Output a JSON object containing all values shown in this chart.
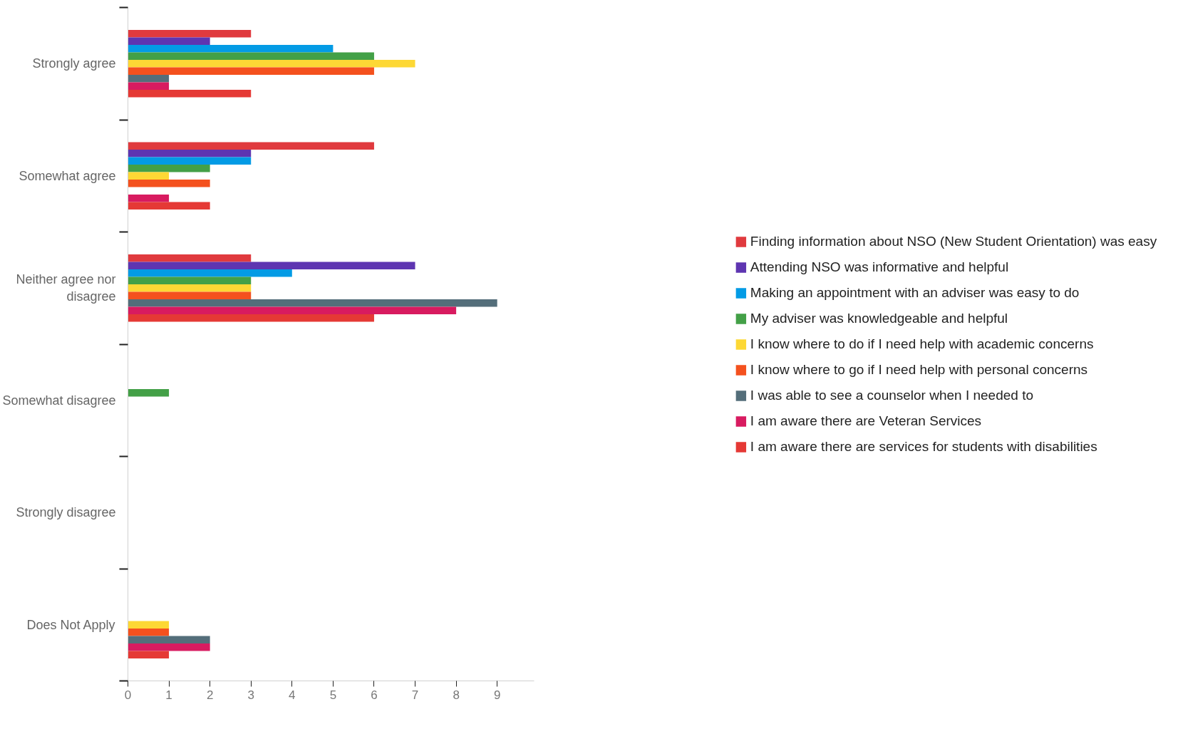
{
  "chart_data": {
    "type": "bar",
    "orientation": "horizontal",
    "categories": [
      "Strongly agree",
      "Somewhat agree",
      "Neither agree nor disagree",
      "Somewhat disagree",
      "Strongly disagree",
      "Does Not Apply"
    ],
    "xlim": [
      0,
      9.9
    ],
    "xticks": [
      0,
      1,
      2,
      3,
      4,
      5,
      6,
      7,
      8,
      9
    ],
    "grid": false,
    "legend": "right",
    "series": [
      {
        "name": "Finding information about NSO (New Student Orientation) was easy",
        "color": "#e03a3e",
        "values": [
          3,
          6,
          3,
          0,
          0,
          0
        ]
      },
      {
        "name": "Attending NSO was informative and helpful",
        "color": "#5e35b1",
        "values": [
          2,
          3,
          7,
          0,
          0,
          0
        ]
      },
      {
        "name": "Making an appointment with an adviser was easy to do",
        "color": "#039be5",
        "values": [
          5,
          3,
          4,
          0,
          0,
          0
        ]
      },
      {
        "name": "My adviser was knowledgeable and helpful",
        "color": "#43a047",
        "values": [
          6,
          2,
          3,
          1,
          0,
          0
        ]
      },
      {
        "name": "I know where to do if I need help with academic concerns",
        "color": "#fdd835",
        "values": [
          7,
          1,
          3,
          0,
          0,
          1
        ]
      },
      {
        "name": "I know where to go if I need help with personal concerns",
        "color": "#f4511e",
        "values": [
          6,
          2,
          3,
          0,
          0,
          1
        ]
      },
      {
        "name": "I was able to see a counselor when I needed to",
        "color": "#546e7a",
        "values": [
          1,
          0,
          9,
          0,
          0,
          2
        ]
      },
      {
        "name": "I am aware there are Veteran Services",
        "color": "#d81b60",
        "values": [
          1,
          1,
          8,
          0,
          0,
          2
        ]
      },
      {
        "name": "I am aware there are services for students with disabilities",
        "color": "#e53935",
        "values": [
          3,
          2,
          6,
          0,
          0,
          1
        ]
      }
    ]
  }
}
